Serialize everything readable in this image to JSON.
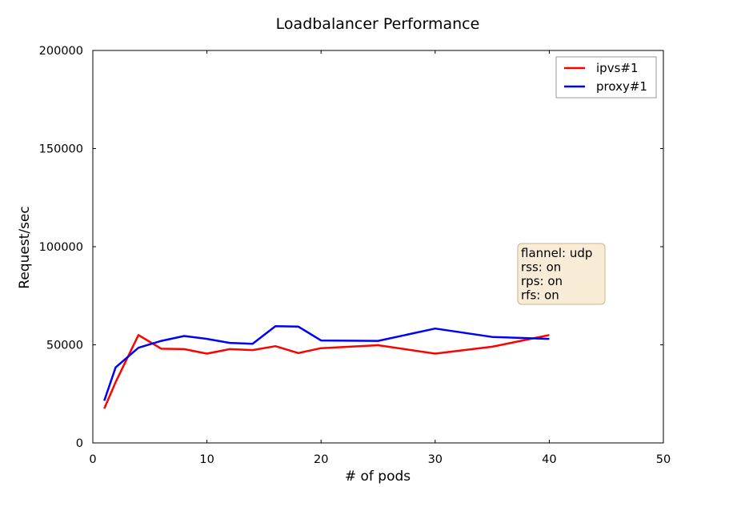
{
  "chart_data": {
    "type": "line",
    "title": "Loadbalancer Performance",
    "xlabel": "# of pods",
    "ylabel": "Request/sec",
    "xlim": [
      0,
      50
    ],
    "ylim": [
      0,
      200000
    ],
    "xticks": [
      0,
      10,
      20,
      30,
      40,
      50
    ],
    "yticks": [
      0,
      50000,
      100000,
      150000,
      200000
    ],
    "grid": false,
    "legend_position": "top-right",
    "series": [
      {
        "name": "ipvs#1",
        "color": "#ff0000",
        "x": [
          1,
          2,
          4,
          6,
          8,
          10,
          12,
          14,
          16,
          18,
          20,
          25,
          30,
          35,
          40
        ],
        "y": [
          17500,
          31000,
          55000,
          48000,
          47800,
          45500,
          47800,
          47300,
          49300,
          45800,
          48300,
          49800,
          45500,
          49000,
          55000
        ]
      },
      {
        "name": "proxy#1",
        "color": "#0000ff",
        "x": [
          1,
          2,
          4,
          6,
          8,
          10,
          12,
          14,
          16,
          18,
          20,
          25,
          30,
          35,
          40
        ],
        "y": [
          21500,
          38500,
          48500,
          52000,
          54500,
          53000,
          51000,
          50500,
          59500,
          59300,
          52200,
          52000,
          58300,
          54000,
          53000
        ]
      }
    ],
    "annotation": {
      "lines": [
        "flannel: udp",
        "rss: on",
        "rps: on",
        "rfs: on"
      ],
      "background": "#f8ecd6",
      "border": "#c8b48c"
    }
  }
}
